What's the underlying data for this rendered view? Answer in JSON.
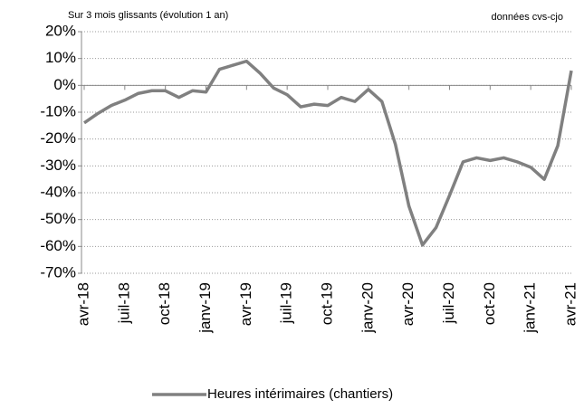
{
  "chart_data": {
    "type": "line",
    "subtitle": "Sur 3 mois glissants (évolution 1 an)",
    "note": "données cvs-cjo",
    "categories": [
      "avr-18",
      null,
      null,
      "juil-18",
      null,
      null,
      "oct-18",
      null,
      null,
      "janv-19",
      null,
      null,
      "avr-19",
      null,
      null,
      "juil-19",
      null,
      null,
      "oct-19",
      null,
      null,
      "janv-20",
      null,
      null,
      "avr-20",
      null,
      null,
      "juil-20",
      null,
      null,
      "oct-20",
      null,
      null,
      "janv-21",
      null,
      null,
      "avr-21"
    ],
    "series": [
      {
        "name": "Heures intérimaires (chantiers)",
        "color": "#808080",
        "values": [
          -14,
          -10.5,
          -7.5,
          -5.5,
          -3,
          -2,
          -2,
          -4.5,
          -2,
          -2.5,
          6,
          7.5,
          9,
          4.5,
          -1,
          -3.5,
          -8,
          -7,
          -7.5,
          -4.5,
          -6,
          -1.5,
          -6,
          -22,
          -45,
          -59.5,
          -53,
          -41,
          -28.5,
          -27,
          -28,
          -27,
          -28.5,
          -30.5,
          -35,
          -22.5,
          5.5
        ]
      }
    ],
    "ylim": [
      -70,
      20
    ],
    "yticks": [
      {
        "value": -70,
        "label": "-70%"
      },
      {
        "value": -60,
        "label": "-60%"
      },
      {
        "value": -50,
        "label": "-50%"
      },
      {
        "value": -40,
        "label": "-40%"
      },
      {
        "value": -30,
        "label": "-30%"
      },
      {
        "value": -20,
        "label": "-20%"
      },
      {
        "value": -10,
        "label": "-10%"
      },
      {
        "value": 0,
        "label": "0%"
      },
      {
        "value": 10,
        "label": "10%"
      },
      {
        "value": 20,
        "label": "20%"
      }
    ],
    "grid": true,
    "legend": "bottom"
  }
}
